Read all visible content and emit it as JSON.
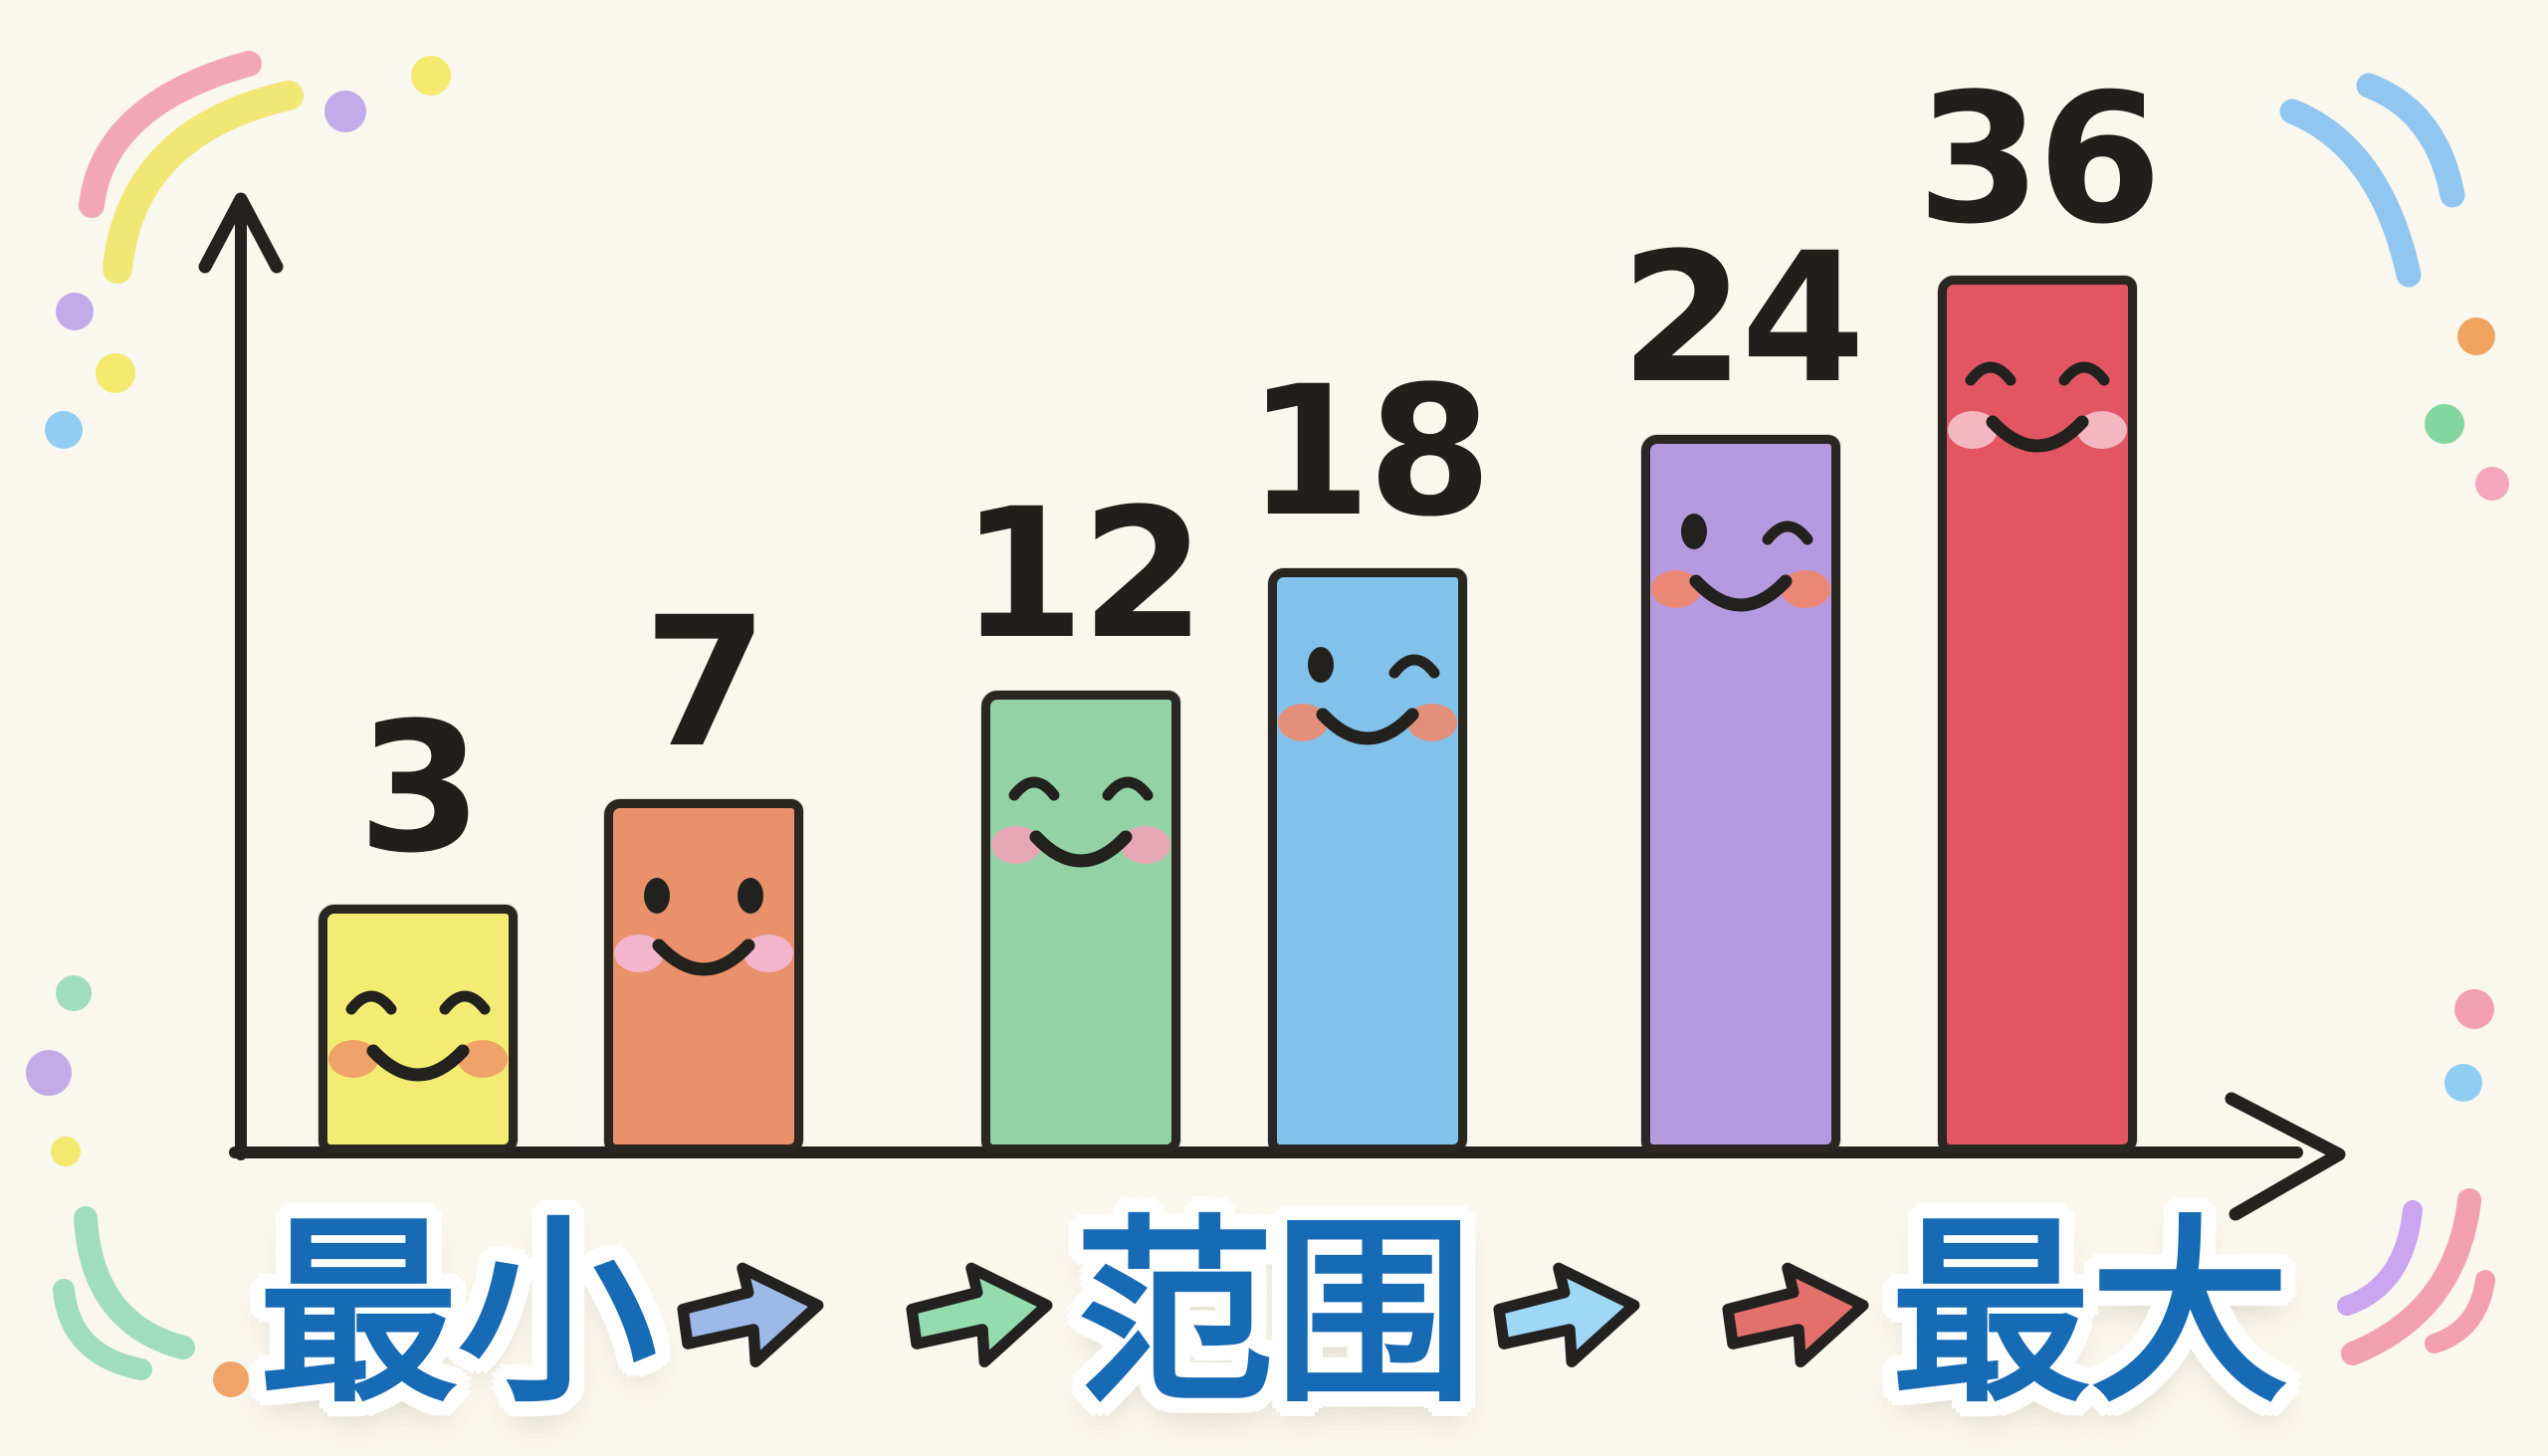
{
  "background_color": "#faf7ee",
  "chart_data": {
    "type": "bar",
    "title": "",
    "xlabel": "",
    "ylabel": "",
    "values": [
      3,
      7,
      12,
      18,
      24,
      36
    ],
    "value_labels": [
      "3",
      "7",
      "12",
      "18",
      "24",
      "36"
    ],
    "bar_colors": [
      "#f3ec73",
      "#e9916b",
      "#92d2a6",
      "#82c2ea",
      "#b69ae0",
      "#e25663"
    ],
    "bar_border_color": "#2a2723",
    "blush_colors": [
      "#ef9c68",
      "#f2b9d5",
      "#eda3b6",
      "#ec8b70",
      "#f0876b",
      "#f4bfca"
    ],
    "faces": [
      "closed",
      "dots",
      "closed",
      "wink",
      "wink",
      "closed"
    ],
    "value_label_color": "#211f1b",
    "axis_color": "#23221f",
    "grid": false,
    "legend": false,
    "ylim": [
      0,
      36
    ],
    "x_flow_annotation": [
      "最小",
      "范围",
      "最大"
    ]
  },
  "footer": {
    "min_label": "最小",
    "range_label": "范围",
    "max_label": "最大",
    "label_color": "#176ab4",
    "outline_color": "#ffffff",
    "arrows": [
      {
        "name": "arrow-blue",
        "color": "#9cb9e8"
      },
      {
        "name": "arrow-green",
        "color": "#94dcb0"
      },
      {
        "name": "arrow-cyan",
        "color": "#9ed8f6"
      },
      {
        "name": "arrow-red",
        "color": "#e4706b"
      }
    ]
  },
  "decorations": {
    "tl_arcs": [
      "#f2a7b8",
      "#f1e774"
    ],
    "tl_dots": [
      "#c3abe9",
      "#f3ea6f",
      "#c3abe9",
      "#f3e96e",
      "#8fcdf2"
    ],
    "tr_arcs": [
      "#90c6f0",
      "#90c6f0"
    ],
    "tr_dots": [
      "#f0a45f",
      "#83d6a0",
      "#f4a6bc"
    ],
    "bl_arcs": [
      "#9fdcc0",
      "#9fdcc0"
    ],
    "bl_dots": [
      "#9fdcc0",
      "#c4abe8",
      "#f3e96e",
      "#f0a468"
    ],
    "br_arcs": [
      "#c9a6ef",
      "#f2a0ae",
      "#f2a0ae"
    ],
    "br_dots": [
      "#f29fb4",
      "#8fcdf2"
    ]
  }
}
